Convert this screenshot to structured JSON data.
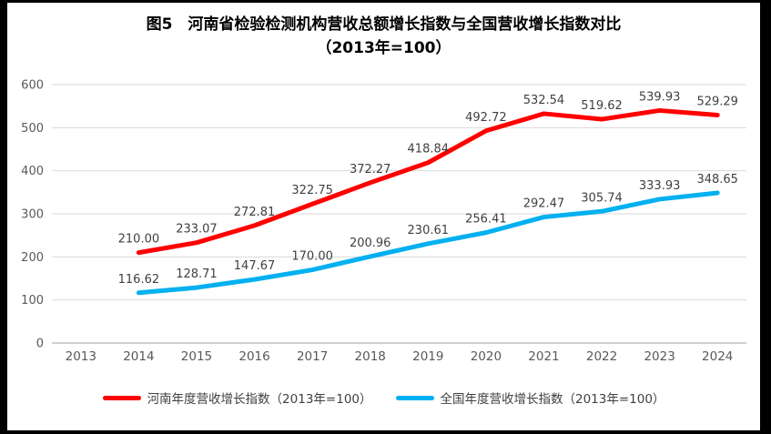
{
  "chart": {
    "title_line1": "图5　河南省检验检测机构营收总额增长指数与全国营收增长指数对比",
    "title_line2": "（2013年=100）"
  },
  "chart_data": {
    "type": "line",
    "title": "图5　河南省检验检测机构营收总额增长指数与全国营收增长指数对比",
    "subtitle": "（2013年=100）",
    "categories": [
      "2013",
      "2014",
      "2015",
      "2016",
      "2017",
      "2018",
      "2019",
      "2020",
      "2021",
      "2022",
      "2023",
      "2024"
    ],
    "series": [
      {
        "name": "河南年度营收增长指数（2013年=100）",
        "color": "#FF0000",
        "values": [
          null,
          210.0,
          233.07,
          272.81,
          322.75,
          372.27,
          418.84,
          492.72,
          532.54,
          519.62,
          539.93,
          529.29
        ]
      },
      {
        "name": "全国年度营收增长指数（2013年=100）",
        "color": "#00B0F0",
        "values": [
          null,
          116.62,
          128.71,
          147.67,
          170.0,
          200.96,
          230.61,
          256.41,
          292.47,
          305.74,
          333.93,
          348.65
        ]
      }
    ],
    "xlabel": "",
    "ylabel": "",
    "ylim": [
      0,
      600
    ],
    "y_ticks": [
      0,
      100,
      200,
      300,
      400,
      500,
      600
    ],
    "grid": true,
    "data_labels": true,
    "label_decimals": 2,
    "legend_position": "bottom",
    "colors": {
      "gridline": "#D9D9D9",
      "axis_line": "#BFBFBF",
      "tick_label": "#595959",
      "data_label": "#404040"
    }
  }
}
